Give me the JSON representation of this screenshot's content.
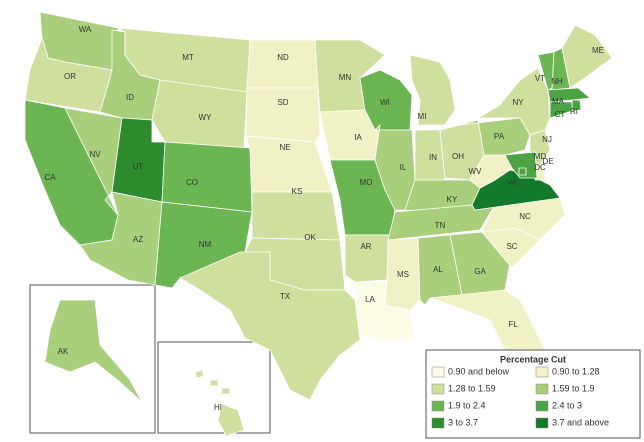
{
  "legend": {
    "title": "Percentage Cut",
    "items": [
      {
        "label": "0.90 and below",
        "color": "#fbfbe6"
      },
      {
        "label": "0.90 to 1.28",
        "color": "#f1f1c6"
      },
      {
        "label": "1.28 to 1.59",
        "color": "#cfe09e"
      },
      {
        "label": "1.59 to 1.9",
        "color": "#a9cf7d"
      },
      {
        "label": "1.9 to 2.4",
        "color": "#6cb553"
      },
      {
        "label": "2.4 to 3",
        "color": "#4ba343"
      },
      {
        "label": "3 to 3.7",
        "color": "#2c8b2c"
      },
      {
        "label": "3.7 and above",
        "color": "#137a2b"
      }
    ]
  },
  "states": [
    {
      "label": "WA",
      "category": 3
    },
    {
      "label": "OR",
      "category": 2
    },
    {
      "label": "CA",
      "category": 4
    },
    {
      "label": "NV",
      "category": 3
    },
    {
      "label": "ID",
      "category": 3
    },
    {
      "label": "MT",
      "category": 2
    },
    {
      "label": "WY",
      "category": 2
    },
    {
      "label": "UT",
      "category": 6
    },
    {
      "label": "CO",
      "category": 4
    },
    {
      "label": "AZ",
      "category": 3
    },
    {
      "label": "NM",
      "category": 4
    },
    {
      "label": "ND",
      "category": 1
    },
    {
      "label": "SD",
      "category": 1
    },
    {
      "label": "NE",
      "category": 1
    },
    {
      "label": "KS",
      "category": 2
    },
    {
      "label": "OK",
      "category": 2
    },
    {
      "label": "TX",
      "category": 2
    },
    {
      "label": "MN",
      "category": 2
    },
    {
      "label": "IA",
      "category": 1
    },
    {
      "label": "MO",
      "category": 4
    },
    {
      "label": "AR",
      "category": 2
    },
    {
      "label": "LA",
      "category": 0
    },
    {
      "label": "WI",
      "category": 4
    },
    {
      "label": "IL",
      "category": 3
    },
    {
      "label": "MI",
      "category": 2
    },
    {
      "label": "IN",
      "category": 2
    },
    {
      "label": "OH",
      "category": 2
    },
    {
      "label": "KY",
      "category": 3
    },
    {
      "label": "TN",
      "category": 3
    },
    {
      "label": "MS",
      "category": 1
    },
    {
      "label": "AL",
      "category": 3
    },
    {
      "label": "GA",
      "category": 3
    },
    {
      "label": "FL",
      "category": 1
    },
    {
      "label": "SC",
      "category": 1
    },
    {
      "label": "NC",
      "category": 1
    },
    {
      "label": "VA",
      "category": 7
    },
    {
      "label": "WV",
      "category": 1
    },
    {
      "label": "PA",
      "category": 3
    },
    {
      "label": "NY",
      "category": 2
    },
    {
      "label": "VT",
      "category": 4
    },
    {
      "label": "NH",
      "category": 4
    },
    {
      "label": "ME",
      "category": 2
    },
    {
      "label": "MA",
      "category": 5
    },
    {
      "label": "RI",
      "category": 5
    },
    {
      "label": "CT",
      "category": 5
    },
    {
      "label": "NJ",
      "category": 2
    },
    {
      "label": "DE",
      "category": 1
    },
    {
      "label": "MD",
      "category": 5
    },
    {
      "label": "DC",
      "category": 5
    },
    {
      "label": "AK",
      "category": 3
    },
    {
      "label": "HI",
      "category": 2
    }
  ]
}
